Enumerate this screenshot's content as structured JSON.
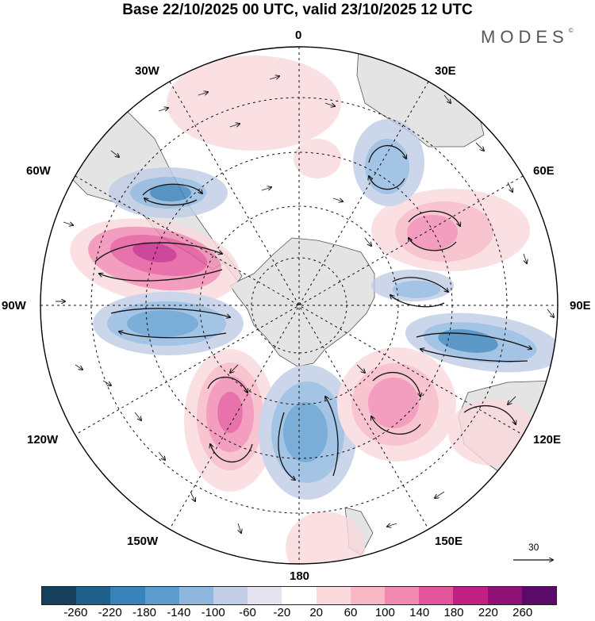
{
  "header": {
    "title": "Base 22/10/2025 00 UTC, valid 23/10/2025 12 UTC",
    "brand": "MODES",
    "brand_mark": "©"
  },
  "map": {
    "projection": "south-polar-stereographic",
    "longitude_labels": {
      "lon_0": "0",
      "lon_30e": "30E",
      "lon_60e": "60E",
      "lon_90e": "90E",
      "lon_120e": "120E",
      "lon_150e": "150E",
      "lon_180": "180",
      "lon_150w": "150W",
      "lon_120w": "120W",
      "lon_90w": "90W",
      "lon_60w": "60W",
      "lon_30w": "30W"
    },
    "wind_reference_value": "30",
    "land_color": "#e4e4e4",
    "coast_color": "#555555"
  },
  "colorbar": {
    "ticks": [
      "-260",
      "-220",
      "-180",
      "-140",
      "-100",
      "-60",
      "-20",
      "20",
      "60",
      "100",
      "140",
      "180",
      "220",
      "260"
    ],
    "colors": [
      "#163f5e",
      "#1f5f8c",
      "#3983bd",
      "#5d9ccf",
      "#8fb7de",
      "#c1cee6",
      "#e4e3ef",
      "#ffffff",
      "#fadadd",
      "#f7b7c5",
      "#f189b0",
      "#e3559a",
      "#c21f85",
      "#8f1077",
      "#5c0a6a"
    ]
  },
  "anomalies": [
    {
      "name": "anomaly-negative-south-atlantic",
      "value": -140
    },
    {
      "name": "anomaly-positive-drake-passage",
      "value": 180
    },
    {
      "name": "anomaly-negative-bellingshausen",
      "value": -140
    },
    {
      "name": "anomaly-positive-amundsen",
      "value": 180
    },
    {
      "name": "anomaly-negative-ross-sea",
      "value": -140
    },
    {
      "name": "anomaly-positive-south-pacific",
      "value": 140
    },
    {
      "name": "anomaly-negative-south-indian",
      "value": -180
    },
    {
      "name": "anomaly-positive-indian-ocean",
      "value": 140
    },
    {
      "name": "anomaly-negative-south-africa",
      "value": -100
    },
    {
      "name": "anomaly-positive-greenwich",
      "value": 60
    },
    {
      "name": "anomaly-negative-east-indian",
      "value": -100
    },
    {
      "name": "anomaly-positive-tasman",
      "value": 60
    }
  ]
}
